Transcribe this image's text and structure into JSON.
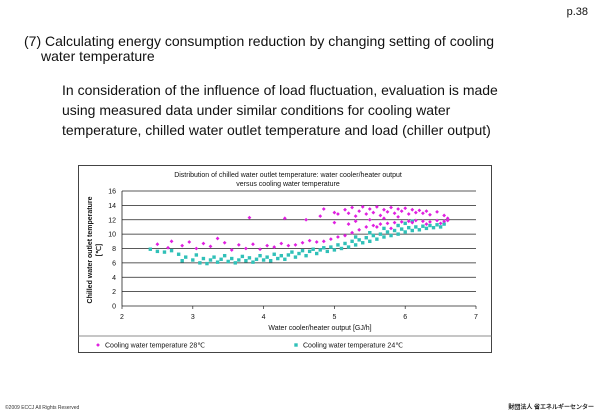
{
  "page": {
    "number": "p.38",
    "heading": {
      "line1": "(7) Calculating energy consumption reduction by changing setting of cooling",
      "line2": "water temperature"
    },
    "body": {
      "line1": "In consideration of the influence of load fluctuation, evaluation is made",
      "line2": "using measured data under similar conditions for cooling water",
      "line3": "temperature, chilled water outlet temperature and load (chiller output)"
    },
    "footer": {
      "copyright": "©2009 ECCJ All Rights Reserved",
      "organization": "財団法人 省エネルギーセンター"
    }
  },
  "chart_data": {
    "type": "scatter",
    "title_line1": "Distribution of chilled water outlet temperature: water cooler/heater output",
    "title_line2": "versus cooling water temperature",
    "xlabel": "Water cooler/heater output [GJ/h]",
    "ylabel_line1": "Chilled water outlet temperature",
    "ylabel_line2": "[℃]",
    "xlim": [
      2,
      7
    ],
    "ylim": [
      0,
      16
    ],
    "xticks": [
      "2",
      "3",
      "4",
      "5",
      "6",
      "7"
    ],
    "yticks": [
      "0",
      "2",
      "4",
      "6",
      "8",
      "10",
      "12",
      "14",
      "16"
    ],
    "grid": true,
    "legend_position": "bottom",
    "series": [
      {
        "name": "Cooling water temperature 28℃",
        "marker": "diamond",
        "color": "#e020e0",
        "points": [
          [
            2.5,
            8.6
          ],
          [
            2.65,
            8.1
          ],
          [
            2.7,
            9.0
          ],
          [
            2.85,
            8.4
          ],
          [
            2.95,
            8.9
          ],
          [
            3.05,
            8.0
          ],
          [
            3.15,
            8.7
          ],
          [
            3.25,
            8.3
          ],
          [
            3.35,
            9.4
          ],
          [
            3.45,
            8.8
          ],
          [
            3.55,
            7.8
          ],
          [
            3.65,
            8.5
          ],
          [
            3.75,
            8.0
          ],
          [
            3.85,
            8.6
          ],
          [
            3.95,
            7.9
          ],
          [
            4.05,
            8.4
          ],
          [
            4.15,
            8.2
          ],
          [
            4.25,
            8.7
          ],
          [
            4.35,
            8.4
          ],
          [
            4.45,
            8.5
          ],
          [
            4.55,
            8.8
          ],
          [
            4.65,
            9.1
          ],
          [
            4.75,
            8.9
          ],
          [
            4.85,
            9.0
          ],
          [
            4.95,
            9.3
          ],
          [
            5.05,
            9.6
          ],
          [
            5.15,
            9.8
          ],
          [
            5.25,
            10.2
          ],
          [
            5.35,
            10.6
          ],
          [
            5.45,
            11.0
          ],
          [
            5.55,
            11.2
          ],
          [
            5.65,
            11.4
          ],
          [
            5.75,
            11.5
          ],
          [
            5.85,
            11.6
          ],
          [
            5.95,
            11.7
          ],
          [
            6.05,
            11.8
          ],
          [
            6.15,
            11.9
          ],
          [
            6.25,
            11.8
          ],
          [
            6.35,
            11.7
          ],
          [
            6.45,
            11.9
          ],
          [
            6.55,
            11.8
          ],
          [
            6.6,
            11.9
          ],
          [
            3.8,
            12.3
          ],
          [
            4.3,
            12.2
          ],
          [
            4.6,
            12.0
          ],
          [
            4.8,
            12.5
          ],
          [
            4.85,
            13.5
          ],
          [
            5.0,
            13.0
          ],
          [
            5.05,
            12.8
          ],
          [
            5.15,
            13.4
          ],
          [
            5.2,
            12.9
          ],
          [
            5.25,
            13.7
          ],
          [
            5.3,
            12.5
          ],
          [
            5.35,
            13.2
          ],
          [
            5.4,
            13.8
          ],
          [
            5.45,
            12.8
          ],
          [
            5.5,
            13.5
          ],
          [
            5.55,
            13.0
          ],
          [
            5.6,
            13.8
          ],
          [
            5.65,
            12.6
          ],
          [
            5.7,
            13.4
          ],
          [
            5.75,
            13.1
          ],
          [
            5.8,
            13.7
          ],
          [
            5.85,
            12.9
          ],
          [
            5.9,
            13.5
          ],
          [
            5.95,
            13.2
          ],
          [
            6.0,
            13.6
          ],
          [
            6.05,
            12.8
          ],
          [
            6.1,
            13.4
          ],
          [
            6.15,
            13.0
          ],
          [
            6.2,
            13.3
          ],
          [
            6.25,
            12.9
          ],
          [
            6.3,
            13.2
          ],
          [
            6.35,
            12.7
          ],
          [
            6.45,
            13.1
          ],
          [
            6.55,
            12.6
          ],
          [
            6.6,
            12.2
          ],
          [
            6.5,
            11.5
          ],
          [
            5.9,
            12.4
          ],
          [
            5.7,
            12.2
          ],
          [
            5.5,
            12.0
          ],
          [
            5.3,
            11.8
          ],
          [
            6.1,
            11.6
          ],
          [
            6.3,
            11.4
          ],
          [
            5.2,
            11.4
          ],
          [
            5.0,
            11.6
          ],
          [
            5.6,
            11.0
          ],
          [
            5.8,
            10.8
          ]
        ]
      },
      {
        "name": "Cooling water temperature 24℃",
        "marker": "square",
        "color": "#30c0b8",
        "points": [
          [
            2.4,
            7.9
          ],
          [
            2.5,
            7.6
          ],
          [
            2.6,
            7.5
          ],
          [
            2.7,
            7.7
          ],
          [
            2.8,
            7.2
          ],
          [
            2.85,
            6.3
          ],
          [
            2.9,
            6.8
          ],
          [
            3.0,
            6.4
          ],
          [
            3.05,
            7.1
          ],
          [
            3.1,
            6.0
          ],
          [
            3.15,
            6.6
          ],
          [
            3.2,
            5.9
          ],
          [
            3.25,
            6.4
          ],
          [
            3.3,
            6.8
          ],
          [
            3.35,
            6.1
          ],
          [
            3.4,
            6.5
          ],
          [
            3.45,
            7.0
          ],
          [
            3.5,
            6.2
          ],
          [
            3.55,
            6.6
          ],
          [
            3.6,
            6.0
          ],
          [
            3.65,
            6.4
          ],
          [
            3.7,
            6.9
          ],
          [
            3.75,
            6.3
          ],
          [
            3.8,
            6.7
          ],
          [
            3.85,
            6.1
          ],
          [
            3.9,
            6.5
          ],
          [
            3.95,
            7.0
          ],
          [
            4.0,
            6.4
          ],
          [
            4.05,
            6.8
          ],
          [
            4.1,
            6.3
          ],
          [
            4.15,
            7.2
          ],
          [
            4.2,
            6.6
          ],
          [
            4.25,
            7.0
          ],
          [
            4.3,
            6.5
          ],
          [
            4.35,
            7.1
          ],
          [
            4.4,
            7.5
          ],
          [
            4.45,
            6.8
          ],
          [
            4.5,
            7.3
          ],
          [
            4.55,
            7.7
          ],
          [
            4.6,
            7.0
          ],
          [
            4.65,
            7.6
          ],
          [
            4.7,
            7.9
          ],
          [
            4.75,
            7.3
          ],
          [
            4.8,
            7.8
          ],
          [
            4.85,
            8.1
          ],
          [
            4.9,
            7.6
          ],
          [
            4.95,
            8.2
          ],
          [
            5.0,
            7.8
          ],
          [
            5.05,
            8.5
          ],
          [
            5.1,
            8.0
          ],
          [
            5.15,
            8.7
          ],
          [
            5.2,
            8.2
          ],
          [
            5.25,
            9.0
          ],
          [
            5.3,
            8.5
          ],
          [
            5.35,
            9.2
          ],
          [
            5.4,
            8.8
          ],
          [
            5.45,
            9.5
          ],
          [
            5.5,
            9.0
          ],
          [
            5.55,
            9.8
          ],
          [
            5.6,
            9.3
          ],
          [
            5.65,
            10.0
          ],
          [
            5.7,
            9.6
          ],
          [
            5.75,
            10.3
          ],
          [
            5.8,
            9.8
          ],
          [
            5.85,
            10.5
          ],
          [
            5.9,
            10.0
          ],
          [
            5.95,
            10.7
          ],
          [
            6.0,
            10.3
          ],
          [
            6.05,
            10.9
          ],
          [
            6.1,
            10.5
          ],
          [
            6.15,
            11.0
          ],
          [
            6.2,
            10.6
          ],
          [
            6.25,
            11.1
          ],
          [
            6.3,
            10.8
          ],
          [
            6.35,
            11.2
          ],
          [
            6.4,
            10.9
          ],
          [
            6.45,
            11.3
          ],
          [
            6.5,
            11.0
          ],
          [
            6.55,
            11.4
          ],
          [
            6.0,
            11.5
          ],
          [
            5.9,
            11.2
          ],
          [
            6.1,
            11.8
          ],
          [
            5.7,
            10.8
          ],
          [
            5.5,
            10.2
          ],
          [
            5.3,
            9.6
          ]
        ]
      }
    ]
  }
}
